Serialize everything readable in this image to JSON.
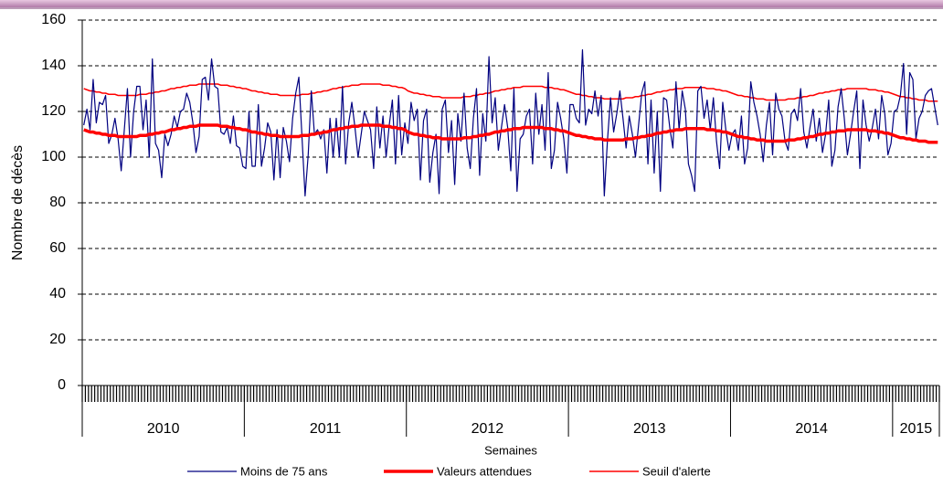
{
  "chart_data": {
    "type": "line",
    "y_axis_label": "Nombre de décès",
    "x_axis_label": "Semaines",
    "ylim": [
      0,
      160
    ],
    "yticks": [
      0,
      20,
      40,
      60,
      80,
      100,
      120,
      140,
      160
    ],
    "grid": true,
    "groups": [
      {
        "label": "2010",
        "count": 52
      },
      {
        "label": "2011",
        "count": 52
      },
      {
        "label": "2012",
        "count": 52
      },
      {
        "label": "2013",
        "count": 52
      },
      {
        "label": "2014",
        "count": 52
      },
      {
        "label": "2015",
        "count": 15
      }
    ],
    "legend_position": "bottom",
    "series": [
      {
        "name": "Moins de 75 ans",
        "color": "#000080",
        "width": 1.2,
        "values": [
          114,
          121,
          112,
          134,
          115,
          124,
          123,
          127,
          106,
          110,
          117,
          108,
          94,
          112,
          130,
          100,
          120,
          131,
          131,
          112,
          125,
          100,
          143,
          106,
          103,
          91,
          110,
          105,
          110,
          118,
          113,
          120,
          121,
          128,
          124,
          115,
          102,
          109,
          134,
          135,
          125,
          143,
          131,
          130,
          111,
          110,
          113,
          106,
          118,
          105,
          104,
          96,
          95,
          120,
          96,
          96,
          123,
          96,
          104,
          115,
          111,
          90,
          112,
          91,
          113,
          107,
          98,
          117,
          128,
          135,
          109,
          83,
          101,
          129,
          110,
          112,
          108,
          112,
          93,
          117,
          100,
          117,
          100,
          131,
          97,
          115,
          124,
          113,
          100,
          110,
          120,
          116,
          112,
          95,
          122,
          104,
          118,
          100,
          114,
          125,
          97,
          127,
          101,
          115,
          106,
          124,
          116,
          121,
          90,
          116,
          121,
          89,
          102,
          110,
          84,
          121,
          125,
          102,
          116,
          88,
          119,
          107,
          128,
          104,
          95,
          117,
          130,
          92,
          119,
          107,
          144,
          115,
          126,
          103,
          113,
          123,
          113,
          94,
          130,
          85,
          108,
          110,
          118,
          121,
          97,
          128,
          110,
          123,
          103,
          137,
          95,
          103,
          124,
          117,
          108,
          93,
          123,
          123,
          117,
          115,
          147,
          114,
          121,
          119,
          129,
          118,
          127,
          83,
          107,
          126,
          111,
          119,
          129,
          117,
          104,
          118,
          110,
          100,
          114,
          128,
          133,
          97,
          125,
          93,
          120,
          85,
          126,
          125,
          113,
          104,
          133,
          112,
          129,
          121,
          97,
          92,
          85,
          129,
          131,
          117,
          125,
          112,
          126,
          107,
          95,
          124,
          112,
          103,
          110,
          112,
          103,
          118,
          97,
          104,
          133,
          124,
          118,
          110,
          98,
          114,
          124,
          101,
          128,
          121,
          118,
          107,
          103,
          119,
          121,
          116,
          130,
          111,
          104,
          113,
          121,
          107,
          117,
          102,
          110,
          125,
          96,
          103,
          122,
          130,
          117,
          101,
          110,
          120,
          129,
          95,
          125,
          114,
          107,
          113,
          121,
          108,
          127,
          119,
          101,
          106,
          120,
          121,
          127,
          141,
          110,
          137,
          134,
          108,
          117,
          120,
          127,
          129,
          130,
          122,
          114
        ]
      },
      {
        "name": "Valeurs attendues",
        "color": "#ff0000",
        "width": 3.5,
        "values": [
          112,
          111.5,
          111,
          111,
          110.5,
          110.5,
          110,
          110,
          109.5,
          109.5,
          109.5,
          109,
          109,
          109,
          109,
          109,
          109,
          109,
          109.5,
          109.5,
          109.5,
          110,
          110,
          110.5,
          110.5,
          111,
          111,
          111.5,
          112,
          112,
          112.5,
          112.5,
          113,
          113,
          113.5,
          113.5,
          113.5,
          114,
          114,
          114,
          114,
          114,
          114,
          114,
          113.5,
          113.5,
          113.5,
          113,
          113,
          112.5,
          112.5,
          112,
          112,
          111.5,
          111,
          111,
          110.5,
          110.5,
          110,
          110,
          109.5,
          109.5,
          109.5,
          109,
          109,
          109,
          109,
          109,
          109,
          109,
          109.5,
          109.5,
          109.5,
          110,
          110,
          110.5,
          110.5,
          111,
          111,
          111.5,
          112,
          112,
          112.5,
          112.5,
          113,
          113,
          113.5,
          113.5,
          113.5,
          114,
          114,
          114,
          114,
          114,
          114,
          114,
          113.5,
          113.5,
          113.5,
          113,
          113,
          112.5,
          112.5,
          112,
          111,
          110.5,
          110,
          110,
          109.5,
          109.5,
          109,
          109,
          108.5,
          108.5,
          108.5,
          108,
          108,
          108,
          108,
          108,
          108,
          108,
          108.5,
          108.5,
          108.5,
          109,
          109,
          109.5,
          109.5,
          110,
          110,
          110.5,
          111,
          111,
          111.5,
          111.5,
          112,
          112,
          112.5,
          112.5,
          112.5,
          113,
          113,
          113,
          113,
          113,
          113,
          113,
          112.5,
          112.5,
          112.5,
          112,
          112,
          111.5,
          111.5,
          111,
          110.5,
          110,
          109.5,
          109.5,
          109,
          109,
          108.5,
          108.5,
          108,
          108,
          108,
          107.5,
          107.5,
          107.5,
          107.5,
          107.5,
          107.5,
          107.5,
          108,
          108,
          108,
          108.5,
          108.5,
          109,
          109,
          109.5,
          109.5,
          110,
          110.5,
          110.5,
          111,
          111,
          111.5,
          111.5,
          112,
          112,
          112,
          112.5,
          112.5,
          112.5,
          112.5,
          112.5,
          112.5,
          112.5,
          112,
          112,
          112,
          111.5,
          111.5,
          111,
          111,
          110.5,
          110,
          109.5,
          109,
          109,
          108.5,
          108.5,
          108,
          108,
          107.5,
          107.5,
          107.5,
          107,
          107,
          107,
          107,
          107,
          107,
          107,
          107.5,
          107.5,
          107.5,
          108,
          108,
          108.5,
          108.5,
          109,
          109,
          109.5,
          110,
          110,
          110.5,
          110.5,
          111,
          111,
          111.5,
          111.5,
          111.5,
          112,
          112,
          112,
          112,
          112,
          112,
          112,
          111.5,
          111.5,
          111.5,
          111,
          111,
          110.5,
          110.5,
          110,
          109.5,
          109,
          108.5,
          108.5,
          108,
          108,
          107.5,
          107.5,
          107,
          107,
          107,
          106.5,
          106.5,
          106.5,
          106.5
        ]
      },
      {
        "name": "Seuil d'alerte",
        "color": "#ff0000",
        "width": 1.5,
        "values": [
          130,
          129.5,
          129,
          129,
          128.5,
          128.5,
          128,
          128,
          127.5,
          127.5,
          127.5,
          127,
          127,
          127,
          127,
          127,
          127,
          127,
          127.5,
          127.5,
          127.5,
          128,
          128,
          128.5,
          128.5,
          129,
          129,
          129.5,
          130,
          130,
          130.5,
          130.5,
          131,
          131,
          131.5,
          131.5,
          131.5,
          132,
          132,
          132,
          132,
          132,
          132,
          132,
          131.5,
          131.5,
          131.5,
          131,
          131,
          130.5,
          130.5,
          130,
          130,
          129.5,
          129,
          129,
          128.5,
          128.5,
          128,
          128,
          127.5,
          127.5,
          127.5,
          127,
          127,
          127,
          127,
          127,
          127,
          127,
          127.5,
          127.5,
          127.5,
          128,
          128,
          128.5,
          128.5,
          129,
          129,
          129.5,
          130,
          130,
          130.5,
          130.5,
          131,
          131,
          131.5,
          131.5,
          131.5,
          132,
          132,
          132,
          132,
          132,
          132,
          132,
          131.5,
          131.5,
          131.5,
          131,
          131,
          130.5,
          130.5,
          130,
          129,
          128.5,
          128,
          128,
          127.5,
          127.5,
          127,
          127,
          126.5,
          126.5,
          126.5,
          126,
          126,
          126,
          126,
          126,
          126,
          126,
          126.5,
          126.5,
          126.5,
          127,
          127,
          127.5,
          127.5,
          128,
          128,
          128.5,
          129,
          129,
          129.5,
          129.5,
          130,
          130,
          130.5,
          130.5,
          130.5,
          131,
          131,
          131,
          131,
          131,
          131,
          131,
          130.5,
          130.5,
          130.5,
          130,
          130,
          129.5,
          129.5,
          129,
          128.5,
          128,
          127.5,
          127.5,
          127,
          127,
          126.5,
          126.5,
          126,
          126,
          126,
          125.5,
          125.5,
          125.5,
          125.5,
          125.5,
          125.5,
          125.5,
          126,
          126,
          126,
          126.5,
          126.5,
          127,
          127,
          127.5,
          127.5,
          128,
          128.5,
          128.5,
          129,
          129,
          129.5,
          129.5,
          130,
          130,
          130,
          130.5,
          130.5,
          130.5,
          130.5,
          130.5,
          130.5,
          130.5,
          130,
          130,
          130,
          129.5,
          129.5,
          129,
          129,
          128.5,
          128,
          127.5,
          127,
          127,
          126.5,
          126.5,
          126,
          126,
          125.5,
          125.5,
          125.5,
          125,
          125,
          125,
          125,
          125,
          125,
          125,
          125.5,
          125.5,
          125.5,
          126,
          126,
          126.5,
          126.5,
          127,
          127,
          127.5,
          128,
          128,
          128.5,
          128.5,
          129,
          129,
          129.5,
          129.5,
          129.5,
          130,
          130,
          130,
          130,
          130,
          130,
          130,
          129.5,
          129.5,
          129.5,
          129,
          129,
          128.5,
          128.5,
          128,
          127.5,
          127,
          126.5,
          126.5,
          126,
          126,
          125.5,
          125.5,
          125,
          125,
          125,
          124.5,
          124.5,
          124.5,
          124.5
        ]
      }
    ]
  }
}
